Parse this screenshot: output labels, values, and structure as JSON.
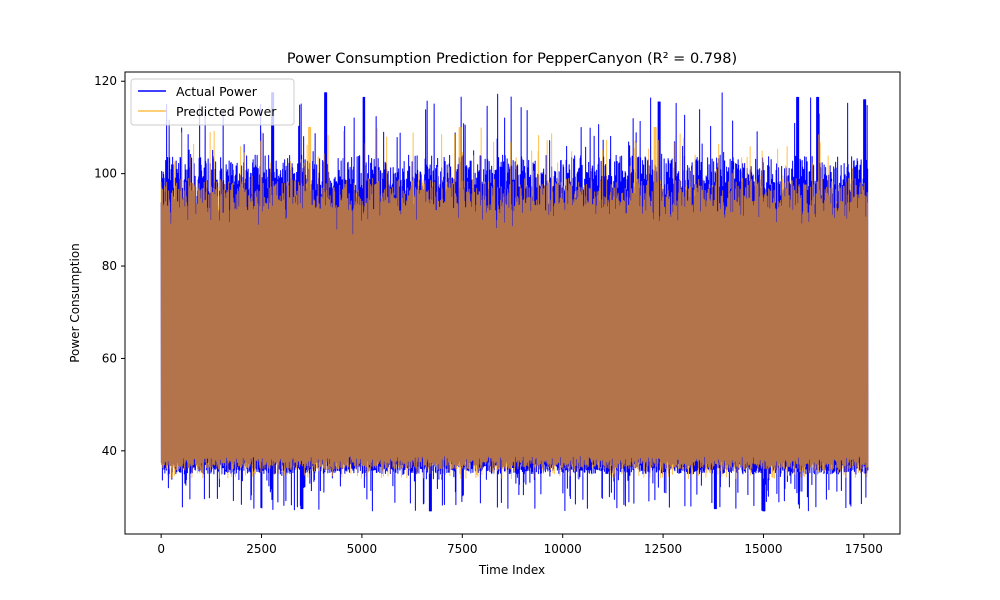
{
  "chart_data": {
    "type": "line",
    "title": "Power Consumption Prediction for PepperCanyon (R² = 0.798)",
    "xlabel": "Time Index",
    "ylabel": "Power Consumption",
    "xlim": [
      -900,
      18400
    ],
    "ylim": [
      22,
      122
    ],
    "xticks": [
      0,
      2500,
      5000,
      7500,
      10000,
      12500,
      15000,
      17500
    ],
    "yticks": [
      40,
      60,
      80,
      100,
      120
    ],
    "x_range": [
      0,
      17600
    ],
    "grid": false,
    "legend_position": "top-left",
    "series": [
      {
        "name": "Actual Power",
        "color": "#0000ff",
        "alpha": 1.0,
        "envelope": {
          "min_low": 27,
          "typical_low": 35,
          "typical_high": 104,
          "max_high": 118
        },
        "peaks": [
          {
            "x": 2780,
            "y": 117.5
          },
          {
            "x": 4100,
            "y": 117.5
          },
          {
            "x": 5050,
            "y": 116.5
          },
          {
            "x": 12400,
            "y": 115.5
          },
          {
            "x": 15850,
            "y": 116.5
          },
          {
            "x": 16350,
            "y": 116.5
          },
          {
            "x": 17520,
            "y": 116.0
          }
        ],
        "troughs": [
          {
            "x": 6700,
            "y": 27.0
          },
          {
            "x": 15000,
            "y": 27.0
          },
          {
            "x": 13800,
            "y": 27.5
          },
          {
            "x": 3500,
            "y": 27.5
          }
        ]
      },
      {
        "name": "Predicted Power",
        "color": "#ffa500",
        "alpha": 0.7,
        "envelope": {
          "min_low": 34,
          "typical_low": 36,
          "typical_high": 99,
          "max_high": 110
        },
        "peaks": [
          {
            "x": 3700,
            "y": 110.0
          },
          {
            "x": 7450,
            "y": 110.0
          },
          {
            "x": 12300,
            "y": 110.0
          }
        ],
        "troughs": []
      }
    ]
  }
}
